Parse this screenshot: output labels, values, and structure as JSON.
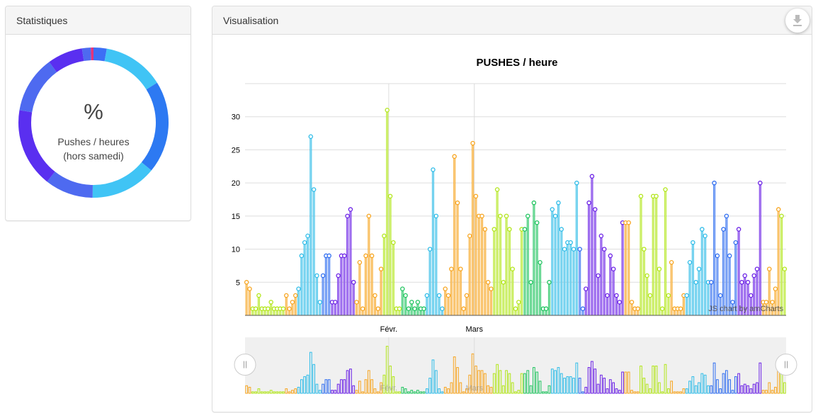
{
  "stats_panel": {
    "title": "Statistiques",
    "center_value": "%",
    "label_line1": "Pushes / heures",
    "label_line2": "(hors samedi)",
    "donut_segments": [
      {
        "color": "#3d6ff5",
        "value": 3
      },
      {
        "color": "#40c4f5",
        "value": 14
      },
      {
        "color": "#2d79f2",
        "value": 21
      },
      {
        "color": "#40c4f5",
        "value": 15
      },
      {
        "color": "#4e6af0",
        "value": 11
      },
      {
        "color": "#5a2ff0",
        "value": 18
      },
      {
        "color": "#4e6af0",
        "value": 13
      },
      {
        "color": "#5a2ff0",
        "value": 8
      },
      {
        "color": "#4e6af0",
        "value": 2
      },
      {
        "color": "#e4337a",
        "value": 0.6
      }
    ]
  },
  "vis_panel": {
    "title": "Visualisation",
    "download_icon": "download-icon"
  },
  "chart_data": {
    "type": "bar",
    "title": "PUSHES / heure",
    "xlabel": "",
    "ylabel": "",
    "ylim": [
      0,
      35
    ],
    "yticks": [
      5,
      10,
      15,
      20,
      25,
      30
    ],
    "month_labels": [
      {
        "label": "Févr.",
        "index": 47
      },
      {
        "label": "Mars",
        "index": 75
      }
    ],
    "credit": "JS chart by amCharts",
    "grid": true,
    "values": [
      5,
      4,
      1,
      1,
      3,
      1,
      1,
      1,
      2,
      1,
      1,
      1,
      1,
      3,
      1,
      2,
      3,
      4,
      9,
      11,
      12,
      27,
      19,
      6,
      2,
      6,
      9,
      9,
      2,
      2,
      6,
      9,
      9,
      15,
      16,
      5,
      2,
      8,
      1,
      9,
      15,
      9,
      3,
      1,
      7,
      12,
      31,
      18,
      11,
      1,
      1,
      4,
      3,
      1,
      2,
      1,
      2,
      1,
      1,
      3,
      10,
      22,
      15,
      3,
      1,
      4,
      3,
      7,
      24,
      17,
      7,
      1,
      3,
      12,
      26,
      18,
      15,
      15,
      13,
      5,
      4,
      13,
      19,
      15,
      5,
      15,
      13,
      7,
      1,
      2,
      13,
      13,
      15,
      5,
      17,
      14,
      8,
      1,
      1,
      5,
      16,
      15,
      17,
      13,
      10,
      11,
      11,
      10,
      20,
      10,
      1,
      4,
      17,
      21,
      16,
      6,
      12,
      10,
      3,
      9,
      7,
      3,
      2,
      14,
      14,
      14,
      2,
      1,
      1,
      18,
      10,
      6,
      3,
      18,
      18,
      7,
      1,
      19,
      3,
      8,
      1,
      1,
      1,
      3,
      3,
      8,
      11,
      5,
      7,
      13,
      12,
      5,
      5,
      20,
      9,
      3,
      13,
      15,
      9,
      2,
      11,
      13,
      5,
      6,
      5,
      3,
      6,
      7,
      20,
      2,
      2,
      7,
      2,
      4,
      16,
      15,
      7
    ],
    "colors": [
      "#f7a520",
      "#b2e619",
      "#f7a520",
      "#2fbce8",
      "#2f6df0",
      "#6b21e6",
      "#f7a520",
      "#b2e619",
      "#20c45f",
      "#2fbce8",
      "#f7a520",
      "#b2e619",
      "#20c45f",
      "#2fbce8",
      "#2f6df0",
      "#6b21e6"
    ],
    "color_runs": [
      [
        0,
        1
      ],
      [
        2,
        12
      ],
      [
        13,
        16
      ],
      [
        17,
        24
      ],
      [
        25,
        27
      ],
      [
        28,
        35
      ],
      [
        36,
        44
      ],
      [
        45,
        50
      ],
      [
        51,
        58
      ],
      [
        59,
        64
      ],
      [
        65,
        80
      ],
      [
        81,
        90
      ],
      [
        91,
        99
      ],
      [
        100,
        108
      ],
      [
        109,
        110
      ],
      [
        111,
        123
      ],
      [
        124,
        128
      ],
      [
        129,
        138
      ],
      [
        139,
        143
      ],
      [
        144,
        151
      ],
      [
        152,
        160
      ],
      [
        161,
        168
      ],
      [
        169,
        174
      ],
      [
        175,
        179
      ]
    ]
  },
  "scrollbar": {
    "month_labels": [
      {
        "label": "Févr.",
        "index": 47
      },
      {
        "label": "Mars",
        "index": 75
      }
    ]
  }
}
